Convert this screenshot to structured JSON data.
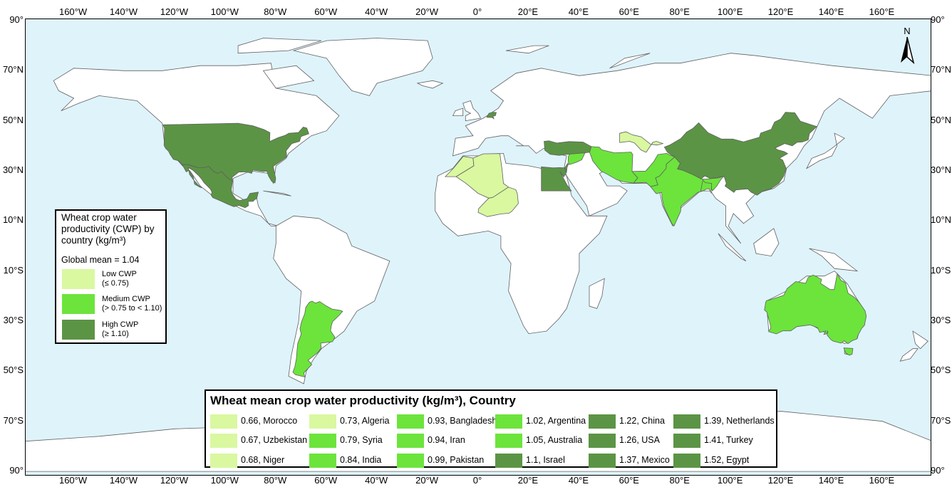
{
  "map": {
    "colors": {
      "ocean": "#dff3fb",
      "land": "#ffffff",
      "border": "#606060",
      "low": "#d9f8a0",
      "medium": "#6ce43c",
      "high": "#5c9445"
    },
    "grid_lon_labels": [
      "160°W",
      "140°W",
      "120°W",
      "100°W",
      "80°W",
      "60°W",
      "40°W",
      "20°W",
      "0°",
      "20°E",
      "40°E",
      "60°E",
      "80°E",
      "100°E",
      "120°E",
      "140°E",
      "160°E"
    ],
    "grid_lon_values": [
      -160,
      -140,
      -120,
      -100,
      -80,
      -60,
      -40,
      -20,
      0,
      20,
      40,
      60,
      80,
      100,
      120,
      140,
      160
    ],
    "grid_lat_labels": [
      "90°",
      "70°N",
      "50°N",
      "30°N",
      "10°N",
      "10°S",
      "30°S",
      "50°S",
      "70°S",
      "90°"
    ],
    "grid_lat_labels_right": [
      "90°",
      "70°N",
      "50°N",
      "30°N",
      "10°N",
      "10°S",
      "30°S",
      "50°S",
      "70°S",
      "90°"
    ],
    "grid_lat_values": [
      90,
      70,
      50,
      30,
      10,
      -10,
      -30,
      -50,
      -70,
      -90
    ],
    "north_arrow": "N",
    "north_arrow_icon": "north-arrow-icon"
  },
  "legend": {
    "title": "Wheat crop water productivity (CWP) by country (kg/m³)",
    "global_mean": "Global mean = 1.04",
    "classes": [
      {
        "name": "Low CWP",
        "range": "(≤ 0.75)",
        "color": "#d9f8a0"
      },
      {
        "name": "Medium CWP",
        "range": "(> 0.75 to  < 1.10)",
        "color": "#6ce43c"
      },
      {
        "name": "High CWP",
        "range": "(≥ 1.10)",
        "color": "#5c9445"
      }
    ]
  },
  "table": {
    "title": "Wheat mean crop water productivity (kg/m³), Country",
    "entries": [
      {
        "label": "0.66, Morocco",
        "value": 0.66,
        "country": "Morocco",
        "class": "low"
      },
      {
        "label": "0.67, Uzbekistan",
        "value": 0.67,
        "country": "Uzbekistan",
        "class": "low"
      },
      {
        "label": "0.68, Niger",
        "value": 0.68,
        "country": "Niger",
        "class": "low"
      },
      {
        "label": "0.73, Algeria",
        "value": 0.73,
        "country": "Algeria",
        "class": "low"
      },
      {
        "label": "0.79, Syria",
        "value": 0.79,
        "country": "Syria",
        "class": "medium"
      },
      {
        "label": "0.84, India",
        "value": 0.84,
        "country": "India",
        "class": "medium"
      },
      {
        "label": "0.93, Bangladesh",
        "value": 0.93,
        "country": "Bangladesh",
        "class": "medium"
      },
      {
        "label": "0.94, Iran",
        "value": 0.94,
        "country": "Iran",
        "class": "medium"
      },
      {
        "label": "0.99, Pakistan",
        "value": 0.99,
        "country": "Pakistan",
        "class": "medium"
      },
      {
        "label": "1.02, Argentina",
        "value": 1.02,
        "country": "Argentina",
        "class": "medium"
      },
      {
        "label": "1.05, Australia",
        "value": 1.05,
        "country": "Australia",
        "class": "medium"
      },
      {
        "label": "1.1, Israel",
        "value": 1.1,
        "country": "Israel",
        "class": "high"
      },
      {
        "label": "1.22, China",
        "value": 1.22,
        "country": "China",
        "class": "high"
      },
      {
        "label": "1.26, USA",
        "value": 1.26,
        "country": "USA",
        "class": "high"
      },
      {
        "label": "1.37, Mexico",
        "value": 1.37,
        "country": "Mexico",
        "class": "high"
      },
      {
        "label": "1.39, Netherlands",
        "value": 1.39,
        "country": "Netherlands",
        "class": "high"
      },
      {
        "label": "1.41, Turkey",
        "value": 1.41,
        "country": "Turkey",
        "class": "high"
      },
      {
        "label": "1.52, Egypt",
        "value": 1.52,
        "country": "Egypt",
        "class": "high"
      }
    ]
  }
}
